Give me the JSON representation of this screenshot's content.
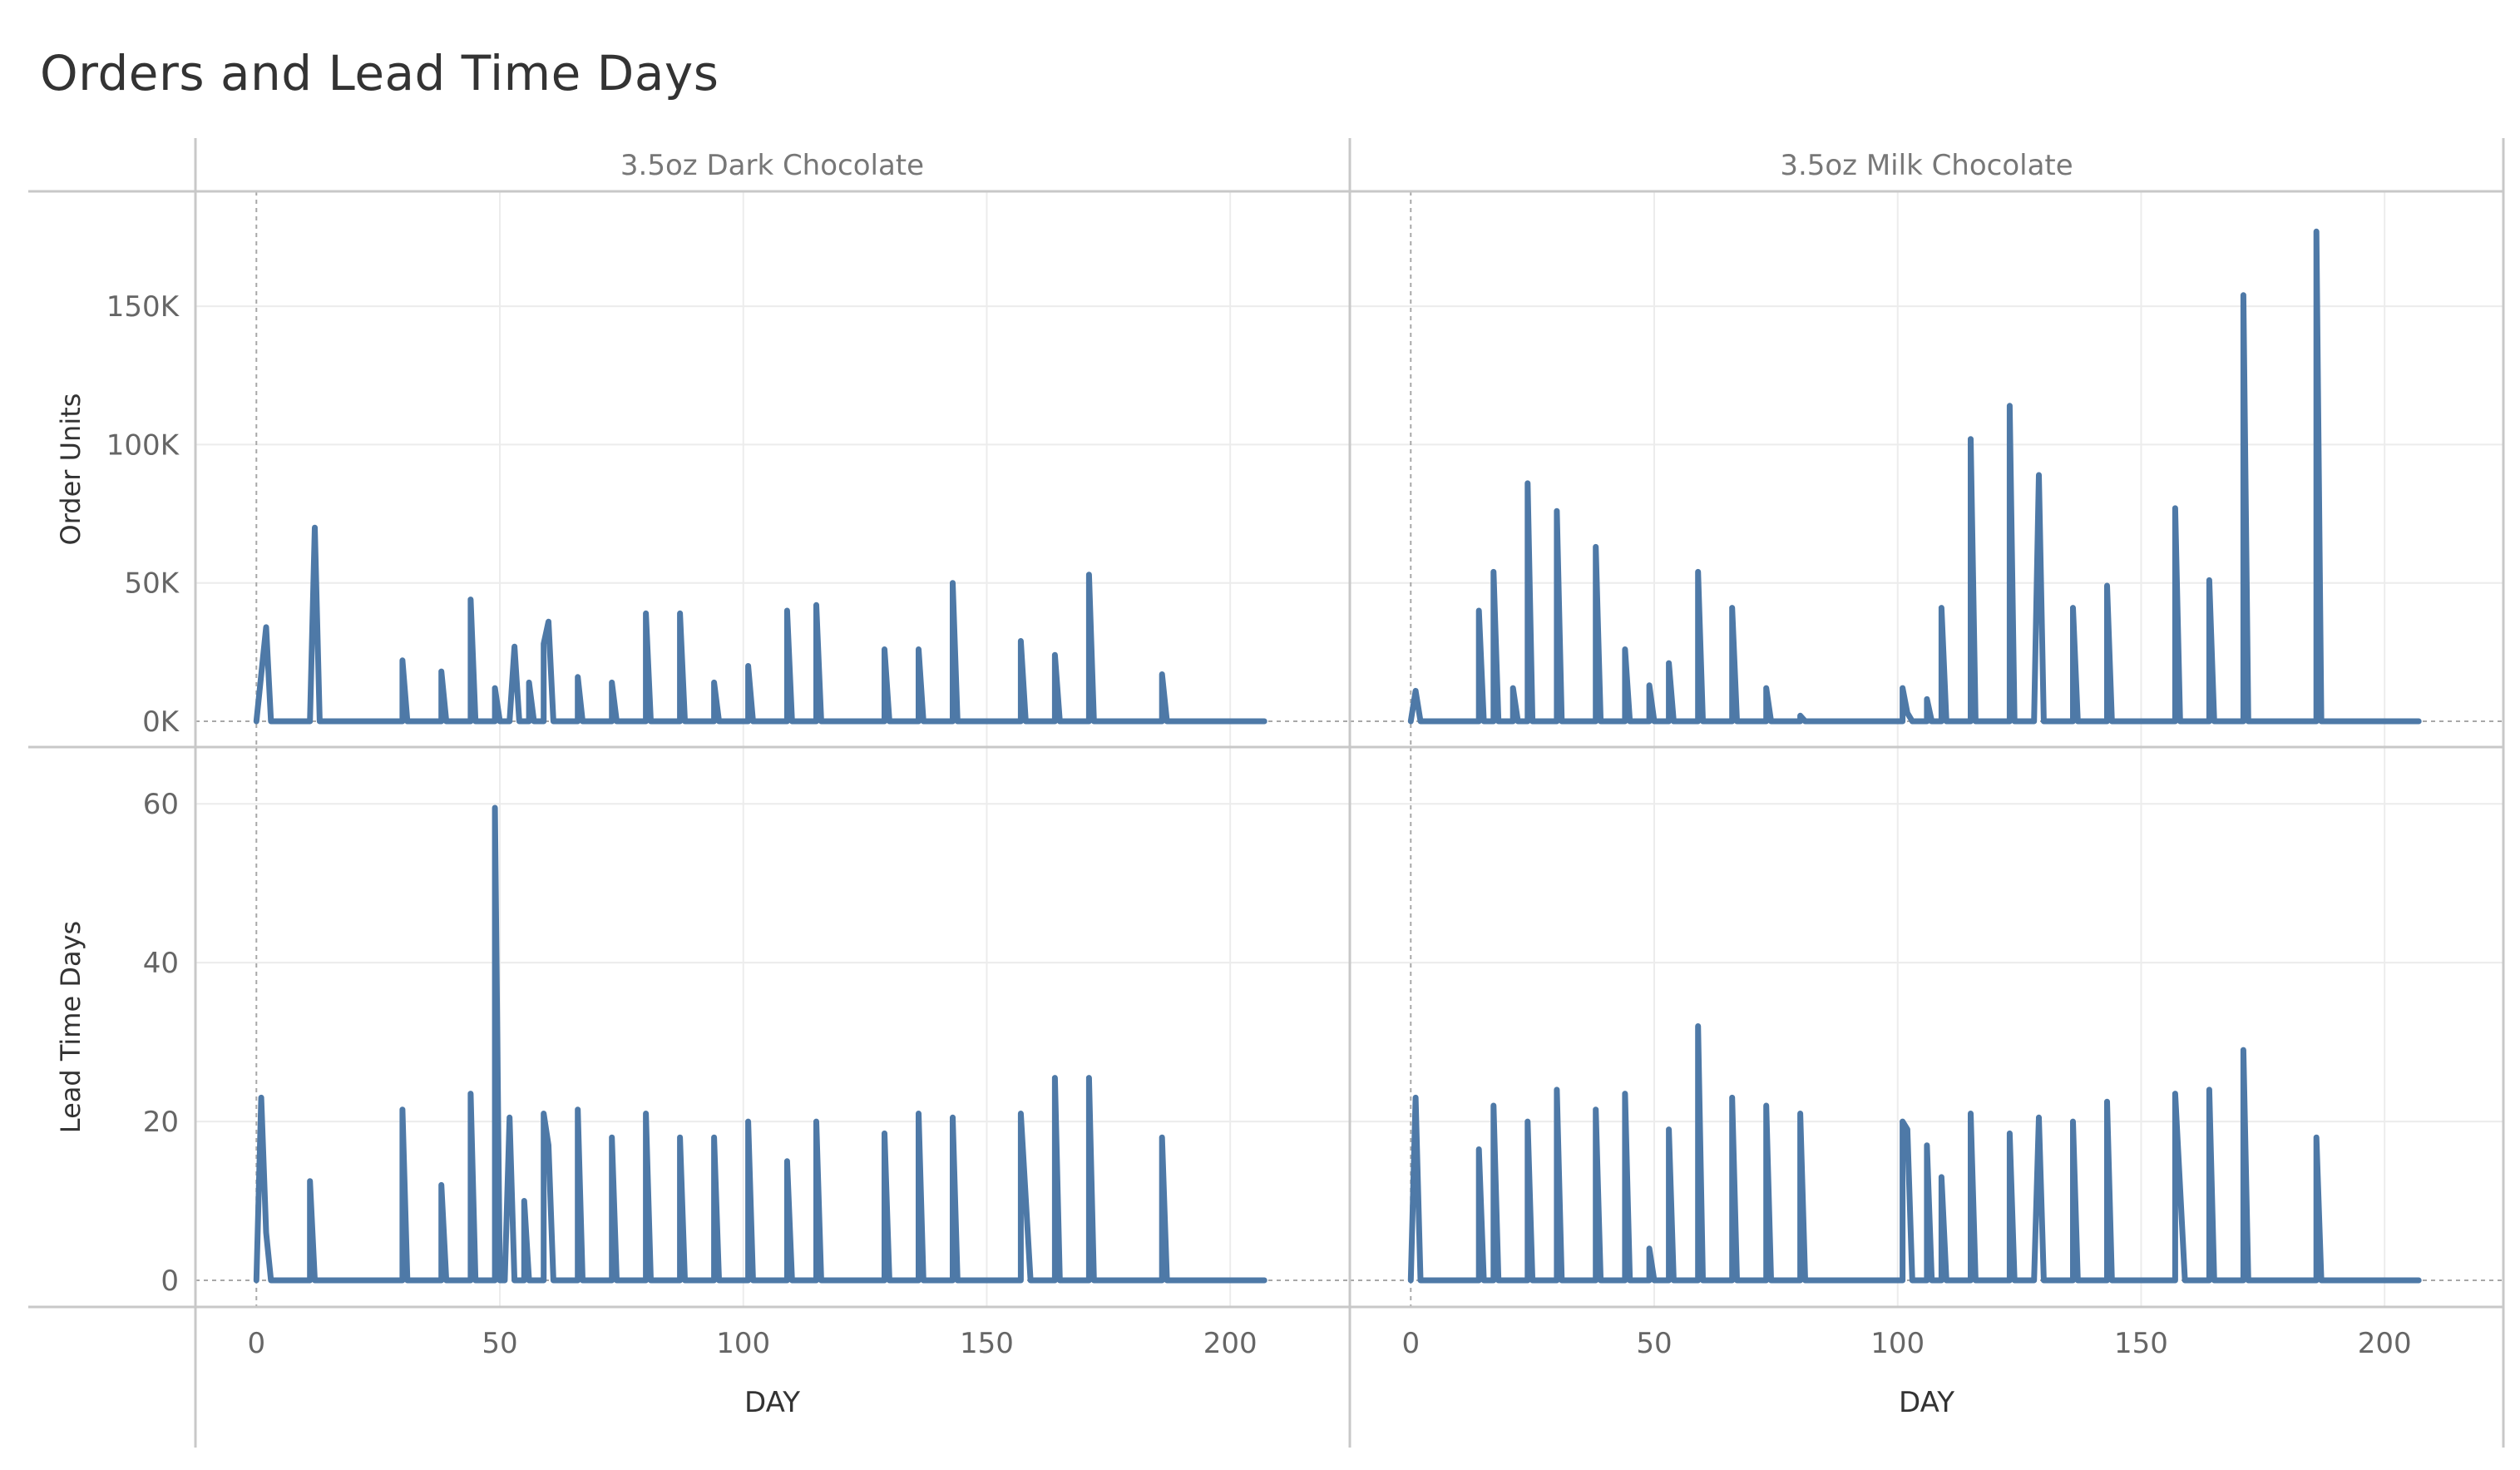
{
  "title": "Orders and Lead Time Days",
  "colors": {
    "line": "#4e79a7",
    "grid": "#ececec",
    "divider": "#c8c8c8",
    "zero": "#a8a8a8"
  },
  "chart_data": {
    "type": "line",
    "panels": [
      "3.5oz Dark Chocolate",
      "3.5oz Milk Chocolate"
    ],
    "rows": [
      {
        "label": "Order Units",
        "ticks": [
          0,
          50000,
          100000,
          150000
        ],
        "tick_labels": [
          "0K",
          "50K",
          "100K",
          "150K"
        ],
        "ylim": [
          0,
          187000
        ]
      },
      {
        "label": "Lead Time Days",
        "ticks": [
          0,
          20,
          40,
          60
        ],
        "tick_labels": [
          "0",
          "20",
          "40",
          "60"
        ],
        "ylim": [
          0,
          64
        ]
      }
    ],
    "xlabel": "DAY",
    "xlim": [
      -5,
      215
    ],
    "xticks": [
      0,
      50,
      100,
      150,
      200
    ],
    "grid": true,
    "series": [
      {
        "panel": "3.5oz Dark Chocolate",
        "measure": "Order Units",
        "points": [
          [
            0,
            0
          ],
          [
            2,
            34000
          ],
          [
            3,
            0
          ],
          [
            11,
            0
          ],
          [
            12,
            70000
          ],
          [
            13,
            0
          ],
          [
            30,
            0
          ],
          [
            30,
            22000
          ],
          [
            31,
            0
          ],
          [
            38,
            0
          ],
          [
            38,
            18000
          ],
          [
            39,
            0
          ],
          [
            44,
            0
          ],
          [
            44,
            44000
          ],
          [
            45,
            0
          ],
          [
            49,
            0
          ],
          [
            49,
            12000
          ],
          [
            50,
            0
          ],
          [
            52,
            0
          ],
          [
            53,
            27000
          ],
          [
            54,
            0
          ],
          [
            56,
            0
          ],
          [
            56,
            14000
          ],
          [
            57,
            0
          ],
          [
            59,
            0
          ],
          [
            59,
            28000
          ],
          [
            60,
            36000
          ],
          [
            61,
            0
          ],
          [
            66,
            0
          ],
          [
            66,
            16000
          ],
          [
            67,
            0
          ],
          [
            73,
            0
          ],
          [
            73,
            14000
          ],
          [
            74,
            0
          ],
          [
            80,
            0
          ],
          [
            80,
            39000
          ],
          [
            81,
            0
          ],
          [
            87,
            0
          ],
          [
            87,
            39000
          ],
          [
            88,
            0
          ],
          [
            94,
            0
          ],
          [
            94,
            14000
          ],
          [
            95,
            0
          ],
          [
            101,
            0
          ],
          [
            101,
            20000
          ],
          [
            102,
            0
          ],
          [
            109,
            0
          ],
          [
            109,
            40000
          ],
          [
            110,
            0
          ],
          [
            115,
            0
          ],
          [
            115,
            42000
          ],
          [
            116,
            0
          ],
          [
            129,
            0
          ],
          [
            129,
            26000
          ],
          [
            130,
            0
          ],
          [
            136,
            0
          ],
          [
            136,
            26000
          ],
          [
            137,
            0
          ],
          [
            143,
            0
          ],
          [
            143,
            50000
          ],
          [
            144,
            0
          ],
          [
            157,
            0
          ],
          [
            157,
            29000
          ],
          [
            158,
            0
          ],
          [
            164,
            0
          ],
          [
            164,
            24000
          ],
          [
            165,
            0
          ],
          [
            171,
            0
          ],
          [
            171,
            53000
          ],
          [
            172,
            0
          ],
          [
            186,
            0
          ],
          [
            186,
            17000
          ],
          [
            187,
            0
          ],
          [
            207,
            0
          ]
        ]
      },
      {
        "panel": "3.5oz Dark Chocolate",
        "measure": "Lead Time Days",
        "points": [
          [
            0,
            0
          ],
          [
            1,
            23
          ],
          [
            2,
            6
          ],
          [
            3,
            0
          ],
          [
            11,
            0
          ],
          [
            11,
            12.5
          ],
          [
            12,
            0
          ],
          [
            30,
            0
          ],
          [
            30,
            21.5
          ],
          [
            31,
            0
          ],
          [
            38,
            0
          ],
          [
            38,
            12
          ],
          [
            39,
            0
          ],
          [
            44,
            0
          ],
          [
            44,
            23.5
          ],
          [
            45,
            0
          ],
          [
            49,
            0
          ],
          [
            49,
            59.5
          ],
          [
            50,
            0
          ],
          [
            51,
            0
          ],
          [
            52,
            20.5
          ],
          [
            53,
            0
          ],
          [
            55,
            0
          ],
          [
            55,
            10
          ],
          [
            56,
            0
          ],
          [
            59,
            0
          ],
          [
            59,
            21
          ],
          [
            60,
            17
          ],
          [
            61,
            0
          ],
          [
            66,
            0
          ],
          [
            66,
            21.5
          ],
          [
            67,
            0
          ],
          [
            73,
            0
          ],
          [
            73,
            18
          ],
          [
            74,
            0
          ],
          [
            80,
            0
          ],
          [
            80,
            21
          ],
          [
            81,
            0
          ],
          [
            87,
            0
          ],
          [
            87,
            18
          ],
          [
            88,
            0
          ],
          [
            94,
            0
          ],
          [
            94,
            18
          ],
          [
            95,
            0
          ],
          [
            101,
            0
          ],
          [
            101,
            20
          ],
          [
            102,
            0
          ],
          [
            109,
            0
          ],
          [
            109,
            15
          ],
          [
            110,
            0
          ],
          [
            115,
            0
          ],
          [
            115,
            20
          ],
          [
            116,
            0
          ],
          [
            129,
            0
          ],
          [
            129,
            18.5
          ],
          [
            130,
            0
          ],
          [
            136,
            0
          ],
          [
            136,
            21
          ],
          [
            137,
            0
          ],
          [
            143,
            0
          ],
          [
            143,
            20.5
          ],
          [
            144,
            0
          ],
          [
            157,
            0
          ],
          [
            157,
            21
          ],
          [
            159,
            0
          ],
          [
            164,
            0
          ],
          [
            164,
            25.5
          ],
          [
            165,
            0
          ],
          [
            171,
            0
          ],
          [
            171,
            25.5
          ],
          [
            172,
            0
          ],
          [
            186,
            0
          ],
          [
            186,
            18
          ],
          [
            187,
            0
          ],
          [
            207,
            0
          ]
        ]
      },
      {
        "panel": "3.5oz Milk Chocolate",
        "measure": "Order Units",
        "points": [
          [
            0,
            0
          ],
          [
            1,
            11000
          ],
          [
            2,
            0
          ],
          [
            14,
            0
          ],
          [
            14,
            40000
          ],
          [
            15,
            0
          ],
          [
            17,
            0
          ],
          [
            17,
            54000
          ],
          [
            18,
            0
          ],
          [
            21,
            0
          ],
          [
            21,
            12000
          ],
          [
            22,
            0
          ],
          [
            24,
            0
          ],
          [
            24,
            86000
          ],
          [
            25,
            0
          ],
          [
            30,
            0
          ],
          [
            30,
            76000
          ],
          [
            31,
            0
          ],
          [
            38,
            0
          ],
          [
            38,
            63000
          ],
          [
            39,
            0
          ],
          [
            44,
            0
          ],
          [
            44,
            26000
          ],
          [
            45,
            0
          ],
          [
            49,
            0
          ],
          [
            49,
            13000
          ],
          [
            50,
            0
          ],
          [
            53,
            0
          ],
          [
            53,
            21000
          ],
          [
            54,
            0
          ],
          [
            59,
            0
          ],
          [
            59,
            54000
          ],
          [
            60,
            0
          ],
          [
            66,
            0
          ],
          [
            66,
            41000
          ],
          [
            67,
            0
          ],
          [
            73,
            0
          ],
          [
            73,
            12000
          ],
          [
            74,
            0
          ],
          [
            80,
            0
          ],
          [
            80,
            2000
          ],
          [
            81,
            0
          ],
          [
            101,
            0
          ],
          [
            101,
            12000
          ],
          [
            102,
            3000
          ],
          [
            103,
            0
          ],
          [
            106,
            0
          ],
          [
            106,
            8000
          ],
          [
            107,
            0
          ],
          [
            109,
            0
          ],
          [
            109,
            41000
          ],
          [
            110,
            0
          ],
          [
            115,
            0
          ],
          [
            115,
            102000
          ],
          [
            116,
            0
          ],
          [
            123,
            0
          ],
          [
            123,
            114000
          ],
          [
            124,
            0
          ],
          [
            128,
            0
          ],
          [
            129,
            89000
          ],
          [
            130,
            0
          ],
          [
            136,
            0
          ],
          [
            136,
            41000
          ],
          [
            137,
            0
          ],
          [
            143,
            0
          ],
          [
            143,
            49000
          ],
          [
            144,
            0
          ],
          [
            157,
            0
          ],
          [
            157,
            77000
          ],
          [
            158,
            0
          ],
          [
            164,
            0
          ],
          [
            164,
            51000
          ],
          [
            165,
            0
          ],
          [
            171,
            0
          ],
          [
            171,
            154000
          ],
          [
            172,
            0
          ],
          [
            186,
            0
          ],
          [
            186,
            177000
          ],
          [
            187,
            0
          ],
          [
            207,
            0
          ]
        ]
      },
      {
        "panel": "3.5oz Milk Chocolate",
        "measure": "Lead Time Days",
        "points": [
          [
            0,
            0
          ],
          [
            1,
            23
          ],
          [
            2,
            0
          ],
          [
            14,
            0
          ],
          [
            14,
            16.5
          ],
          [
            15,
            0
          ],
          [
            17,
            0
          ],
          [
            17,
            22
          ],
          [
            18,
            0
          ],
          [
            24,
            0
          ],
          [
            24,
            20
          ],
          [
            25,
            0
          ],
          [
            30,
            0
          ],
          [
            30,
            24
          ],
          [
            31,
            0
          ],
          [
            38,
            0
          ],
          [
            38,
            21.5
          ],
          [
            39,
            0
          ],
          [
            44,
            0
          ],
          [
            44,
            23.5
          ],
          [
            45,
            0
          ],
          [
            49,
            0
          ],
          [
            49,
            4
          ],
          [
            50,
            0
          ],
          [
            53,
            0
          ],
          [
            53,
            19
          ],
          [
            54,
            0
          ],
          [
            59,
            0
          ],
          [
            59,
            32
          ],
          [
            60,
            0
          ],
          [
            66,
            0
          ],
          [
            66,
            23
          ],
          [
            67,
            0
          ],
          [
            73,
            0
          ],
          [
            73,
            22
          ],
          [
            74,
            0
          ],
          [
            80,
            0
          ],
          [
            80,
            21
          ],
          [
            81,
            0
          ],
          [
            101,
            0
          ],
          [
            101,
            20
          ],
          [
            102,
            19
          ],
          [
            103,
            0
          ],
          [
            106,
            0
          ],
          [
            106,
            17
          ],
          [
            107,
            0
          ],
          [
            109,
            0
          ],
          [
            109,
            13
          ],
          [
            110,
            0
          ],
          [
            115,
            0
          ],
          [
            115,
            21
          ],
          [
            116,
            0
          ],
          [
            123,
            0
          ],
          [
            123,
            18.5
          ],
          [
            124,
            0
          ],
          [
            128,
            0
          ],
          [
            129,
            20.5
          ],
          [
            130,
            0
          ],
          [
            136,
            0
          ],
          [
            136,
            20
          ],
          [
            137,
            0
          ],
          [
            143,
            0
          ],
          [
            143,
            22.5
          ],
          [
            144,
            0
          ],
          [
            157,
            0
          ],
          [
            157,
            23.5
          ],
          [
            159,
            0
          ],
          [
            164,
            0
          ],
          [
            164,
            24
          ],
          [
            165,
            0
          ],
          [
            171,
            0
          ],
          [
            171,
            29
          ],
          [
            172,
            0
          ],
          [
            186,
            0
          ],
          [
            186,
            18
          ],
          [
            187,
            0
          ],
          [
            207,
            0
          ]
        ]
      }
    ]
  }
}
